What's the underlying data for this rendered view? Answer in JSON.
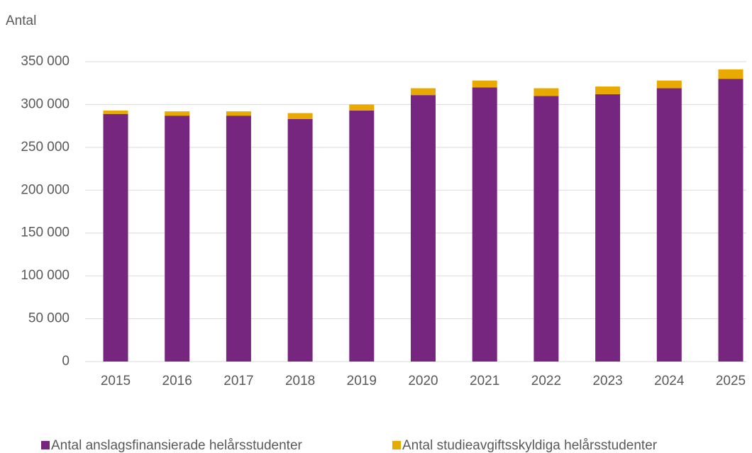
{
  "chart_data": {
    "type": "bar",
    "stacked": true,
    "y_label": "Antal",
    "categories": [
      "2015",
      "2016",
      "2017",
      "2018",
      "2019",
      "2020",
      "2021",
      "2022",
      "2023",
      "2024",
      "2025"
    ],
    "series": [
      {
        "name": "Antal anslagsfinansierade helårsstudenter",
        "color": "#77267f",
        "values": [
          289000,
          287000,
          287000,
          283000,
          293000,
          311000,
          320000,
          310000,
          312000,
          319000,
          330000
        ]
      },
      {
        "name": "Antal studieavgiftsskyldiga helårsstudenter",
        "color": "#e8a900",
        "values": [
          4000,
          5000,
          5000,
          7000,
          7000,
          8000,
          8000,
          9000,
          9000,
          9000,
          11000
        ]
      }
    ],
    "ylim": [
      0,
      350000
    ],
    "yticks": [
      0,
      {
        "value": 50000,
        "label": "50 000"
      },
      {
        "value": 100000,
        "label": "100 000"
      },
      {
        "value": 150000,
        "label": "150 000"
      },
      {
        "value": 200000,
        "label": "200 000"
      },
      {
        "value": 250000,
        "label": "250 000"
      },
      {
        "value": 300000,
        "label": "300 000"
      },
      {
        "value": 350000,
        "label": "350 000"
      }
    ],
    "grid": true,
    "legend": "bottom"
  }
}
